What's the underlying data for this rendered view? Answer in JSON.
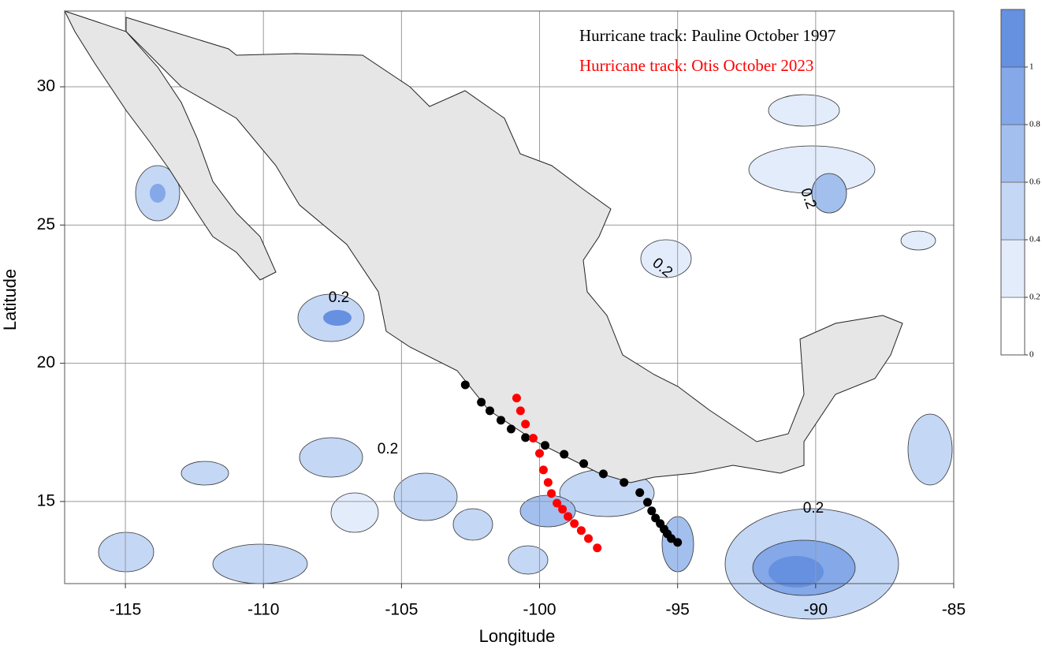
{
  "map": {
    "xlabel": "Longitude",
    "ylabel": "Latitude",
    "xlim": [
      -117.2,
      -85
    ],
    "ylim": [
      12.03,
      32.74
    ],
    "xticks": [
      -115,
      -110,
      -105,
      -100,
      -95,
      -90,
      -85
    ],
    "yticks": [
      15,
      20,
      25,
      30
    ],
    "grid": true,
    "tracks": [
      {
        "name": "Hurricane track: Pauline October 1997",
        "color": "#000000",
        "lon": [
          -102.69,
          -102.11,
          -101.8,
          -101.4,
          -101.03,
          -100.51,
          -99.8,
          -99.11,
          -98.4,
          -97.69,
          -96.94,
          -96.37,
          -96.09,
          -95.94,
          -95.8,
          -95.63,
          -95.49,
          -95.37,
          -95.23,
          -95.0
        ],
        "lat": [
          19.22,
          18.59,
          18.28,
          17.94,
          17.62,
          17.31,
          17.03,
          16.71,
          16.37,
          16.0,
          15.69,
          15.32,
          14.97,
          14.66,
          14.4,
          14.2,
          14.0,
          13.83,
          13.66,
          13.52
        ]
      },
      {
        "name": "Hurricane track: Otis October 2023",
        "color": "#ff0000",
        "lon": [
          -100.83,
          -100.69,
          -100.51,
          -100.23,
          -100.0,
          -99.86,
          -99.69,
          -99.57,
          -99.37,
          -99.17,
          -98.97,
          -98.74,
          -98.49,
          -98.23,
          -97.91
        ],
        "lat": [
          18.74,
          18.28,
          17.8,
          17.29,
          16.74,
          16.14,
          15.69,
          15.29,
          14.94,
          14.72,
          14.46,
          14.2,
          13.95,
          13.66,
          13.32
        ]
      }
    ],
    "contour_labels": [
      "0.2",
      "0.2",
      "0.2",
      "0.2",
      "0.2"
    ],
    "colorbar": {
      "lim": [
        0,
        1.2
      ],
      "ticks": [
        0,
        0.2,
        0.4,
        0.6,
        0.8,
        1
      ],
      "colors": [
        "#ffffff",
        "#e3ecfb",
        "#c4d7f5",
        "#a3bfee",
        "#84a8e8",
        "#6690e0"
      ]
    }
  }
}
